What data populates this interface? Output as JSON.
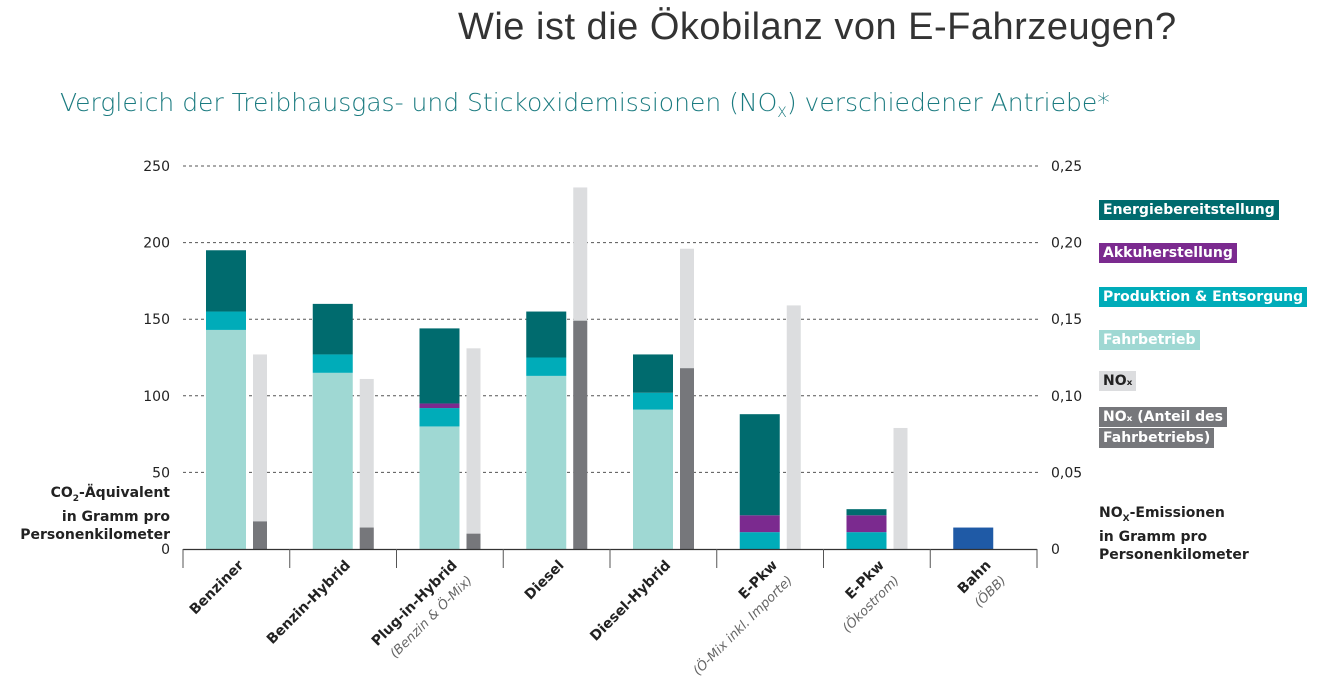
{
  "title": "Wie ist die Ökobilanz von E-Fahrzeugen?",
  "subtitle": {
    "pre": "Vergleich der Treibhausgas- und Stickoxidemissionen (NO",
    "sub": "X",
    "post": ") verschiedener Antriebe*"
  },
  "chart_data": {
    "type": "bar",
    "stacked": true,
    "categories": [
      {
        "name": "Benziner",
        "sub": ""
      },
      {
        "name": "Benzin-Hybrid",
        "sub": ""
      },
      {
        "name": "Plug-in-Hybrid",
        "sub": "(Benzin & Ö-Mix)"
      },
      {
        "name": "Diesel",
        "sub": ""
      },
      {
        "name": "Diesel-Hybrid",
        "sub": ""
      },
      {
        "name": "E-Pkw",
        "sub": "(Ö-Mix inkl. Importe)"
      },
      {
        "name": "E-Pkw",
        "sub": "(Ökostrom)"
      },
      {
        "name": "Bahn",
        "sub": "(ÖBB)"
      }
    ],
    "left_axis": {
      "label": [
        "CO",
        "2",
        "-Äquivalent",
        "in Gramm pro",
        "Personenkilometer"
      ],
      "ylim": [
        0,
        250
      ],
      "ticks": [
        "0",
        "50",
        "100",
        "150",
        "200",
        "250"
      ]
    },
    "right_axis": {
      "label": [
        "NO",
        "X",
        "-Emissionen",
        "in Gramm pro",
        "Personenkilometer"
      ],
      "ylim": [
        0,
        0.25
      ],
      "ticks": [
        "0",
        "0,05",
        "0,10",
        "0,15",
        "0,20",
        "0,25"
      ]
    },
    "grid": true,
    "legend_placement": "right",
    "co2_series": [
      {
        "name": "Fahrbetrieb",
        "color": "#9fd8d3",
        "values": [
          143,
          115,
          80,
          113,
          91,
          0,
          0,
          0
        ]
      },
      {
        "name": "Produktion & Entsorgung",
        "color": "#00acb9",
        "values": [
          12,
          12,
          12,
          12,
          11,
          11,
          11,
          0
        ]
      },
      {
        "name": "Akkuherstellung",
        "color": "#7b2a8f",
        "values": [
          0,
          0,
          3,
          0,
          0,
          11,
          11,
          0
        ]
      },
      {
        "name": "Energiebereitstellung",
        "color": "#006b6e",
        "values": [
          40,
          33,
          49,
          30,
          25,
          66,
          4,
          0
        ]
      },
      {
        "name": "Bahn",
        "color": "#1f5aa6",
        "values": [
          0,
          0,
          0,
          0,
          0,
          0,
          0,
          14
        ]
      }
    ],
    "nox_series": [
      {
        "name": "NOx",
        "color": "#dcdddf",
        "values": [
          0.127,
          0.111,
          0.131,
          0.236,
          0.196,
          0.159,
          0.079,
          0
        ]
      },
      {
        "name": "NOx (Anteil des Fahrbetriebs)",
        "color": "#76777b",
        "values": [
          0.018,
          0.014,
          0.01,
          0.149,
          0.118,
          0,
          0,
          0
        ]
      }
    ],
    "legend": [
      {
        "label": "Energiebereitstellung",
        "color": "#006b6e"
      },
      {
        "label": "Akkuherstellung",
        "color": "#7b2a8f"
      },
      {
        "label": "Produktion & Entsorgung",
        "color": "#00acb9"
      },
      {
        "label": "Fahrbetrieb",
        "color": "#9fd8d3"
      },
      {
        "label": "NOₓ",
        "color": "#dcdddf"
      },
      {
        "label": "NOₓ (Anteil des",
        "label2": "Fahrbetriebs)",
        "color": "#76777b"
      }
    ]
  }
}
